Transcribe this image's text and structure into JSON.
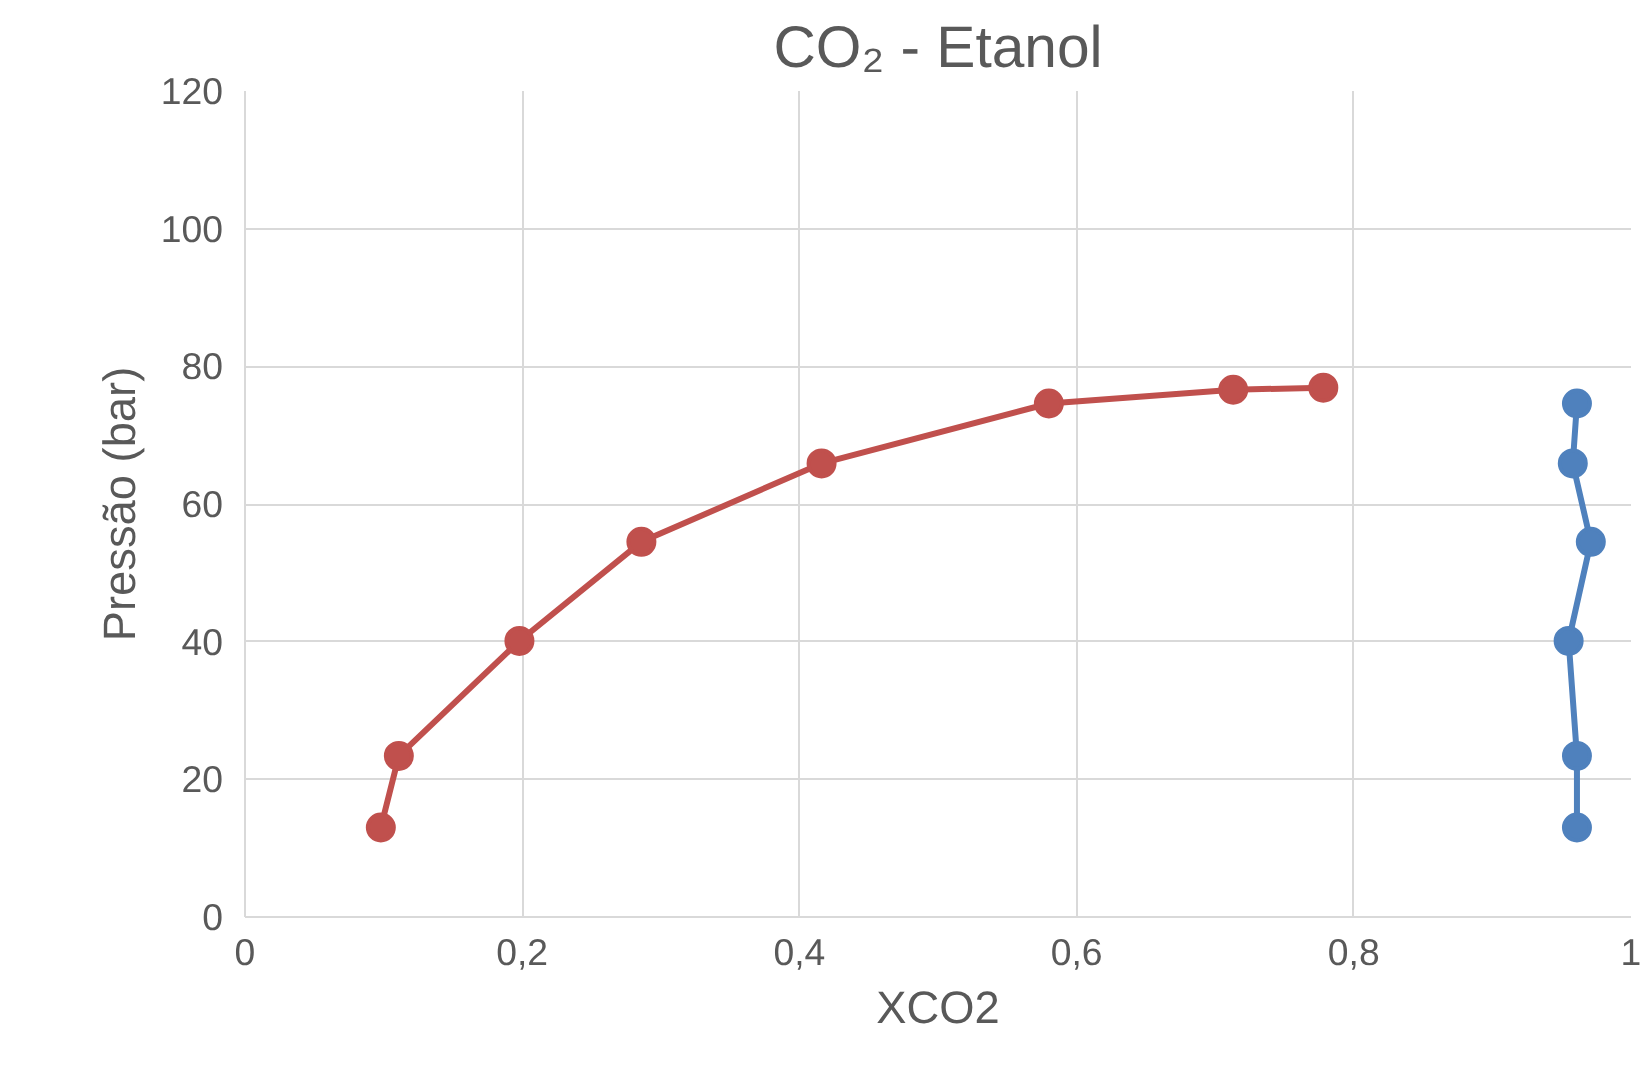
{
  "chart_data": {
    "type": "line",
    "title": "CO₂ - Etanol",
    "xlabel": "XCO2",
    "ylabel": "Pressão (bar)",
    "xlim": [
      0,
      1
    ],
    "xticks": [
      0,
      {
        "value": 0.2,
        "label": "0,2"
      },
      {
        "value": 0.4,
        "label": "0,4"
      },
      {
        "value": 0.6,
        "label": "0,6"
      },
      {
        "value": 0.8,
        "label": "0,8"
      },
      1
    ],
    "ylim": [
      0,
      120
    ],
    "yticks": [
      0,
      20,
      40,
      60,
      80,
      100,
      120
    ],
    "grid": true,
    "marker": "circle",
    "line_style": "solid",
    "series": [
      {
        "color": "#c0504d",
        "x": [
          0.098,
          0.111,
          0.198,
          0.286,
          0.416,
          0.58,
          0.713,
          0.778
        ],
        "values": [
          13,
          23.4,
          40.1,
          54.5,
          65.9,
          74.6,
          76.6,
          76.9
        ]
      },
      {
        "color": "#4f81bd",
        "x": [
          0.961,
          0.958,
          0.971,
          0.955,
          0.961,
          0.961
        ],
        "values": [
          74.6,
          65.9,
          54.5,
          40.1,
          23.4,
          13
        ]
      }
    ]
  }
}
